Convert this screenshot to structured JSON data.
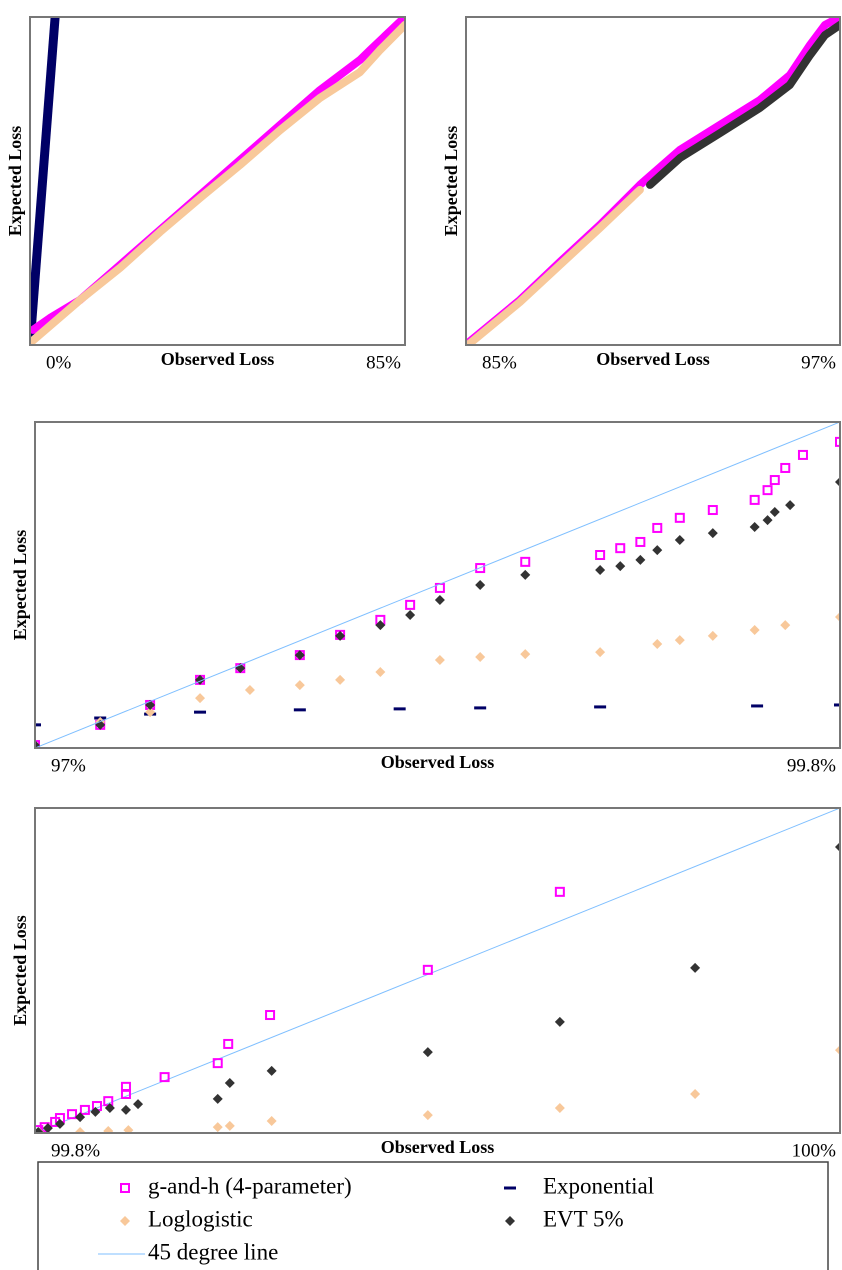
{
  "chart_data": [
    {
      "type": "scatter",
      "connect": true,
      "x_label": "Observed Loss",
      "y_label": "Expected Loss",
      "x_range_labels": [
        "0%",
        "85%"
      ],
      "xlim": [
        0,
        100
      ],
      "ylim": [
        0,
        100
      ],
      "series": [
        {
          "name": "Exponential",
          "color": "#000066",
          "marker": "line",
          "x": [
            0,
            6.7
          ],
          "y": [
            0,
            100
          ]
        },
        {
          "name": "g-and-h (4-parameter)",
          "color": "#ff00ff",
          "marker": "square",
          "x": [
            0.8,
            5.3,
            13.3,
            24.0,
            34.7,
            45.3,
            56.0,
            66.7,
            77.3,
            88.0,
            90.7,
            100
          ],
          "y": [
            4.6,
            8.2,
            13.7,
            24.4,
            35.1,
            45.7,
            56.4,
            67.1,
            77.7,
            86.9,
            89.9,
            100
          ]
        },
        {
          "name": "Loglogistic",
          "color": "#f8c89a",
          "marker": "diamond",
          "x": [
            0,
            13.3,
            24.0,
            34.7,
            45.3,
            56.0,
            66.7,
            77.3,
            88.0,
            93.3,
            100
          ],
          "y": [
            0.6,
            13.7,
            23.5,
            34.5,
            44.8,
            54.9,
            65.5,
            75.3,
            83.2,
            89.9,
            97.6
          ]
        }
      ]
    },
    {
      "type": "scatter",
      "connect": true,
      "x_label": "Observed Loss",
      "y_label": "Expected Loss",
      "x_range_labels": [
        "85%",
        "97%"
      ],
      "xlim": [
        0,
        100
      ],
      "ylim": [
        0,
        100
      ],
      "series": [
        {
          "name": "g-and-h (4-parameter)",
          "color": "#ff00ff",
          "marker": "square",
          "x": [
            0.5,
            14.4,
            25.1,
            35.8,
            46.5,
            57.2,
            67.9,
            78.6,
            86.6,
            92.0,
            96.0,
            100
          ],
          "y": [
            0.6,
            13.7,
            25.3,
            36.6,
            48.8,
            59.5,
            67.1,
            74.7,
            82.3,
            91.5,
            97.6,
            100
          ]
        },
        {
          "name": "Loglogistic",
          "color": "#f8c89a",
          "marker": "diamond",
          "x": [
            0.5,
            14.4,
            25.1,
            35.8,
            46.5
          ],
          "y": [
            0,
            13.1,
            24.4,
            35.7,
            47.3
          ]
        },
        {
          "name": "EVT 5%",
          "color": "#333333",
          "marker": "diamond",
          "x": [
            49.2,
            57.2,
            67.9,
            78.6,
            86.6,
            92.0,
            96.0,
            100
          ],
          "y": [
            48.8,
            57.0,
            64.6,
            72.3,
            79.3,
            88.4,
            94.5,
            97.6
          ]
        }
      ]
    },
    {
      "type": "scatter",
      "connect": false,
      "x_label": "Observed Loss",
      "y_label": "Expected Loss",
      "x_range_labels": [
        "97%",
        "99.8%"
      ],
      "xlim": [
        0,
        100
      ],
      "ylim": [
        0,
        100
      ],
      "series": [
        {
          "name": "g-and-h (4-parameter)",
          "color": "#ff00ff",
          "marker": "square",
          "x": [
            0,
            8.1,
            14.3,
            20.5,
            25.5,
            32.9,
            37.9,
            42.9,
            46.6,
            50.3,
            55.3,
            60.9,
            70.2,
            72.7,
            75.2,
            77.3,
            80.1,
            84.2,
            89.4,
            91.0,
            91.9,
            93.2,
            95.4,
            100
          ],
          "y": [
            0.9,
            7.1,
            13.2,
            20.9,
            24.5,
            28.5,
            34.7,
            39.3,
            43.9,
            49.1,
            55.2,
            57.1,
            59.2,
            61.3,
            63.2,
            67.5,
            70.6,
            73.0,
            76.1,
            79.1,
            82.2,
            85.9,
            89.9,
            93.9
          ]
        },
        {
          "name": "Exponential",
          "color": "#000066",
          "marker": "dash",
          "x": [
            0,
            8.1,
            14.3,
            20.5,
            32.9,
            45.3,
            55.3,
            70.2,
            89.7,
            100
          ],
          "y": [
            7.1,
            9.2,
            10.4,
            11.0,
            11.7,
            12.0,
            12.3,
            12.6,
            12.9,
            13.2
          ]
        },
        {
          "name": "Loglogistic",
          "color": "#f8c89a",
          "marker": "diamond",
          "x": [
            0,
            8.1,
            14.3,
            20.5,
            26.7,
            32.9,
            37.9,
            42.9,
            50.3,
            55.3,
            60.9,
            70.2,
            77.3,
            80.1,
            84.2,
            89.4,
            93.2,
            100
          ],
          "y": [
            0.9,
            8.0,
            11.0,
            15.3,
            17.8,
            19.3,
            20.9,
            23.3,
            27.0,
            27.9,
            28.8,
            29.4,
            31.9,
            33.1,
            34.4,
            36.2,
            37.7,
            40.2
          ]
        },
        {
          "name": "EVT 5%",
          "color": "#333333",
          "marker": "diamond",
          "x": [
            0,
            8.1,
            14.3,
            20.5,
            25.5,
            32.9,
            37.9,
            42.9,
            46.6,
            50.3,
            55.3,
            60.9,
            70.2,
            72.7,
            75.2,
            77.3,
            80.1,
            84.2,
            89.4,
            91.0,
            91.9,
            93.8,
            100
          ],
          "y": [
            0.9,
            7.1,
            13.2,
            20.9,
            24.5,
            28.5,
            34.4,
            37.7,
            40.8,
            45.4,
            50.0,
            53.1,
            54.6,
            55.8,
            57.7,
            60.7,
            63.8,
            65.9,
            67.8,
            69.9,
            72.4,
            74.5,
            81.6
          ]
        },
        {
          "name": "45 degree line",
          "color": "#7fbfff",
          "marker": "line",
          "x": [
            0,
            100
          ],
          "y": [
            0,
            100
          ]
        }
      ]
    },
    {
      "type": "scatter",
      "connect": false,
      "x_label": "Observed Loss",
      "y_label": "Expected Loss",
      "x_range_labels": [
        "99.8%",
        "100%"
      ],
      "xlim": [
        0,
        100
      ],
      "ylim": [
        0,
        100
      ],
      "series": [
        {
          "name": "45 degree line",
          "color": "#7fbfff",
          "marker": "line",
          "x": [
            0,
            100
          ],
          "y": [
            0,
            100
          ]
        },
        {
          "name": "g-and-h (4-parameter)",
          "color": "#ff00ff",
          "marker": "square",
          "x": [
            0.4,
            1.2,
            2.5,
            3.1,
            4.6,
            6.2,
            7.7,
            9.1,
            11.3,
            11.3,
            16.1,
            22.7,
            24.0,
            29.2,
            48.8,
            65.2
          ],
          "y": [
            0.9,
            1.8,
            3.4,
            4.6,
            5.8,
            7.1,
            8.3,
            9.8,
            12.0,
            14.2,
            17.2,
            21.5,
            27.4,
            36.3,
            50.2,
            74.2
          ]
        },
        {
          "name": "Loglogistic",
          "color": "#f8c89a",
          "marker": "diamond",
          "x": [
            0.6,
            5.6,
            9.1,
            11.6,
            22.7,
            24.2,
            29.4,
            48.8,
            65.2,
            82.0,
            100
          ],
          "y": [
            0,
            0.3,
            0.6,
            0.9,
            1.8,
            2.2,
            3.7,
            5.5,
            7.7,
            12.0,
            25.5
          ]
        },
        {
          "name": "EVT 5%",
          "color": "#333333",
          "marker": "diamond",
          "x": [
            0.4,
            1.6,
            3.1,
            5.6,
            7.5,
            9.3,
            11.3,
            12.8,
            22.7,
            24.2,
            29.4,
            48.8,
            65.2,
            82.0,
            100
          ],
          "y": [
            0.3,
            1.5,
            2.8,
            4.9,
            6.5,
            7.7,
            7.1,
            8.9,
            10.5,
            15.4,
            19.1,
            24.9,
            34.2,
            50.8,
            88.0
          ]
        }
      ]
    }
  ]
}
